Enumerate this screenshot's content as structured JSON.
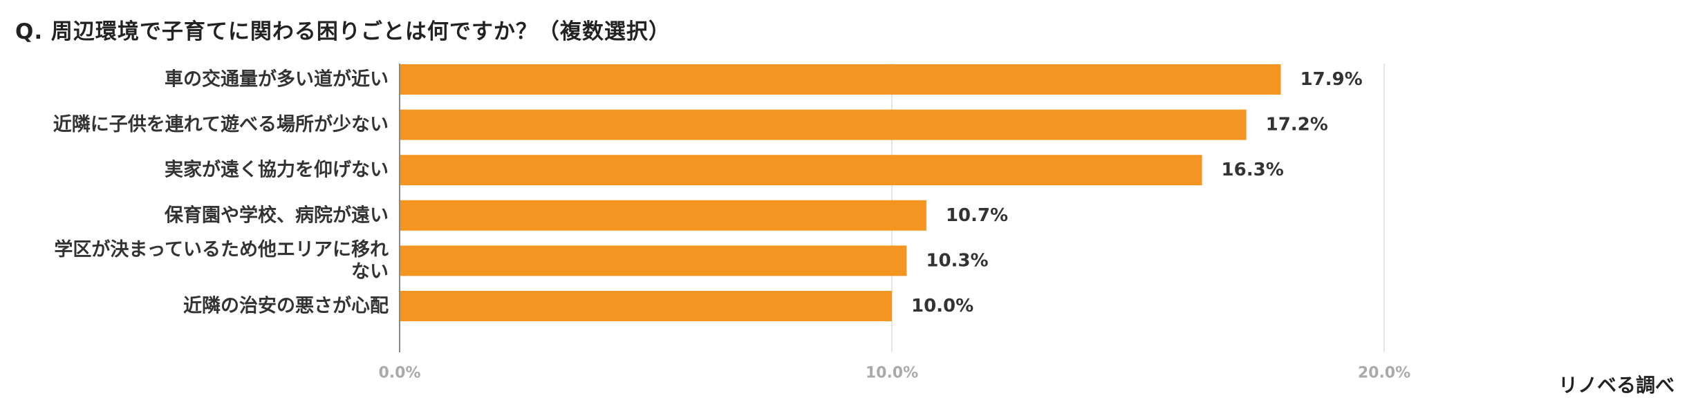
{
  "title": "Q.  周辺環境で子育てに関わる困りごとは何ですか？（複数選択）",
  "credit": "リノベる調べ",
  "chart_data": {
    "type": "bar",
    "orientation": "horizontal",
    "categories": [
      [
        "車の交通量が多い道が近い"
      ],
      [
        "近隣に子供を連れて遊べる場所が少ない"
      ],
      [
        "実家が遠く協力を仰げない"
      ],
      [
        "保育園や学校、病院が遠い"
      ],
      [
        "学区が決まっているため他エリアに移れ",
        "ない"
      ],
      [
        "近隣の治安の悪さが心配"
      ]
    ],
    "values": [
      17.9,
      17.2,
      16.3,
      10.7,
      10.3,
      10.0
    ],
    "value_labels": [
      "17.9%",
      "17.2%",
      "16.3%",
      "10.7%",
      "10.3%",
      "10.0%"
    ],
    "xlim": [
      0,
      20
    ],
    "ticks": [
      0,
      10,
      20
    ],
    "tick_labels": [
      "0.0%",
      "10.0%",
      "20.0%"
    ],
    "bar_color": "#f39520",
    "grid_color": "#e4e4e4",
    "axis_color": "#888888",
    "grid": true
  }
}
